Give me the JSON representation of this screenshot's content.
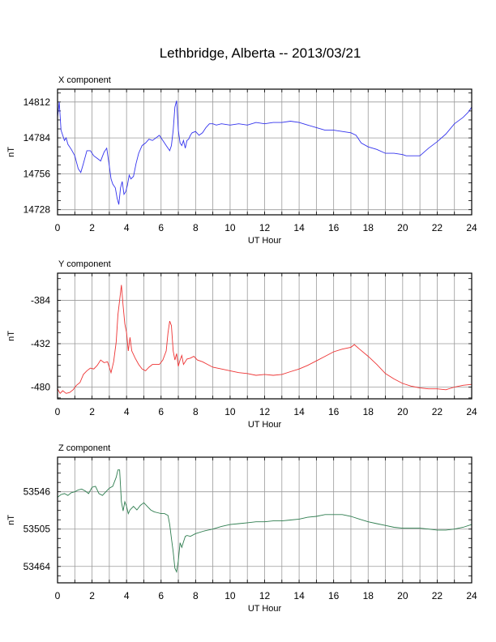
{
  "page": {
    "title": "Lethbridge, Alberta -- 2013/03/21"
  },
  "chart_data": [
    {
      "type": "line",
      "panel_label": "X component",
      "xlabel": "UT Hour",
      "ylabel": "nT",
      "xlim": [
        0,
        24
      ],
      "ylim": [
        14724,
        14822
      ],
      "x_ticks": [
        0,
        2,
        4,
        6,
        8,
        10,
        12,
        14,
        16,
        18,
        20,
        22,
        24
      ],
      "x_tick_labels": [
        "0",
        "2",
        "4",
        "6",
        "8",
        "10",
        "12",
        "14",
        "16",
        "18",
        "20",
        "22",
        "24"
      ],
      "y_ticks": [
        14728,
        14756,
        14784,
        14812
      ],
      "y_tick_labels": [
        "14728",
        "14756",
        "14784",
        "14812"
      ],
      "grid": true,
      "color": "#3333ee",
      "series": [
        {
          "x": [
            0,
            0.1,
            0.2,
            0.3,
            0.4,
            0.5,
            0.6,
            0.8,
            1.0,
            1.2,
            1.35,
            1.5,
            1.7,
            1.9,
            2.1,
            2.3,
            2.5,
            2.7,
            2.85,
            3.0,
            3.1,
            3.2,
            3.35,
            3.45,
            3.55,
            3.65,
            3.75,
            3.85,
            3.95,
            4.05,
            4.15,
            4.25,
            4.4,
            4.55,
            4.7,
            4.9,
            5.1,
            5.3,
            5.5,
            5.7,
            5.9,
            6.1,
            6.3,
            6.5,
            6.6,
            6.7,
            6.8,
            6.9,
            7.0,
            7.1,
            7.2,
            7.3,
            7.4,
            7.5,
            7.6,
            7.7,
            7.8,
            8.0,
            8.2,
            8.4,
            8.6,
            8.8,
            9.0,
            9.2,
            9.5,
            10,
            10.5,
            11,
            11.5,
            12,
            12.5,
            13,
            13.5,
            14,
            14.5,
            15,
            15.5,
            16,
            16.5,
            17,
            17.3,
            17.6,
            18,
            18.5,
            19,
            19.5,
            20,
            20.2,
            20.5,
            21,
            21.5,
            22,
            22.5,
            23,
            23.5,
            23.8,
            24
          ],
          "y": [
            14800,
            14812,
            14790,
            14786,
            14782,
            14784,
            14779,
            14775,
            14770,
            14760,
            14757,
            14764,
            14774,
            14774,
            14770,
            14768,
            14766,
            14773,
            14776,
            14762,
            14752,
            14748,
            14745,
            14737,
            14732,
            14745,
            14750,
            14740,
            14742,
            14747,
            14755,
            14752,
            14754,
            14764,
            14772,
            14778,
            14780,
            14783,
            14782,
            14784,
            14786,
            14782,
            14778,
            14774,
            14778,
            14790,
            14808,
            14813,
            14790,
            14780,
            14778,
            14782,
            14776,
            14782,
            14783,
            14786,
            14788,
            14789,
            14786,
            14788,
            14792,
            14795,
            14795,
            14794,
            14795,
            14794,
            14795,
            14794,
            14796,
            14795,
            14796,
            14796,
            14797,
            14796,
            14794,
            14792,
            14790,
            14790,
            14789,
            14788,
            14786,
            14780,
            14777,
            14775,
            14772,
            14772,
            14771,
            14770,
            14770,
            14770,
            14776,
            14781,
            14787,
            14795,
            14800,
            14804,
            14808
          ]
        }
      ]
    },
    {
      "type": "line",
      "panel_label": "Y component",
      "xlabel": "UT Hour",
      "ylabel": "nT",
      "xlim": [
        0,
        24
      ],
      "ylim": [
        -493,
        -354
      ],
      "x_ticks": [
        0,
        2,
        4,
        6,
        8,
        10,
        12,
        14,
        16,
        18,
        20,
        22,
        24
      ],
      "x_tick_labels": [
        "0",
        "2",
        "4",
        "6",
        "8",
        "10",
        "12",
        "14",
        "16",
        "18",
        "20",
        "22",
        "24"
      ],
      "y_ticks": [
        -480,
        -432,
        -384
      ],
      "y_tick_labels": [
        "-480",
        "-432",
        "-384"
      ],
      "grid": true,
      "color": "#ee3333",
      "series": [
        {
          "x": [
            0,
            0.15,
            0.3,
            0.5,
            0.7,
            0.9,
            1.1,
            1.3,
            1.5,
            1.7,
            1.9,
            2.1,
            2.3,
            2.5,
            2.7,
            2.9,
            3.1,
            3.25,
            3.4,
            3.5,
            3.6,
            3.7,
            3.8,
            3.9,
            4.0,
            4.1,
            4.2,
            4.3,
            4.5,
            4.7,
            4.9,
            5.1,
            5.3,
            5.5,
            5.7,
            5.9,
            6.1,
            6.3,
            6.4,
            6.5,
            6.6,
            6.7,
            6.8,
            6.9,
            7.0,
            7.1,
            7.2,
            7.3,
            7.5,
            7.7,
            7.9,
            8.1,
            8.4,
            8.7,
            9.0,
            9.5,
            10,
            10.5,
            11,
            11.5,
            12,
            12.5,
            13,
            13.5,
            14,
            14.5,
            15,
            15.5,
            16,
            16.5,
            17,
            17.2,
            17.5,
            18,
            18.5,
            19,
            19.5,
            20,
            20.5,
            21,
            21.5,
            22,
            22.5,
            23,
            23.5,
            24
          ],
          "y": [
            -482,
            -487,
            -484,
            -487,
            -486,
            -483,
            -478,
            -475,
            -466,
            -462,
            -459,
            -460,
            -456,
            -450,
            -453,
            -452,
            -464,
            -452,
            -430,
            -400,
            -384,
            -367,
            -390,
            -410,
            -420,
            -440,
            -425,
            -440,
            -448,
            -455,
            -460,
            -462,
            -458,
            -455,
            -455,
            -455,
            -450,
            -440,
            -420,
            -407,
            -412,
            -440,
            -450,
            -443,
            -457,
            -450,
            -445,
            -455,
            -449,
            -448,
            -446,
            -450,
            -452,
            -455,
            -458,
            -460,
            -462,
            -464,
            -465,
            -467,
            -466,
            -467,
            -466,
            -463,
            -460,
            -456,
            -451,
            -446,
            -441,
            -438,
            -436,
            -433,
            -438,
            -446,
            -455,
            -465,
            -471,
            -476,
            -479,
            -481,
            -482,
            -482,
            -483,
            -480,
            -478,
            -477
          ]
        }
      ]
    },
    {
      "type": "line",
      "panel_label": "Z component",
      "xlabel": "UT Hour",
      "ylabel": "nT",
      "xlim": [
        0,
        24
      ],
      "ylim": [
        53446,
        53584
      ],
      "x_ticks": [
        0,
        2,
        4,
        6,
        8,
        10,
        12,
        14,
        16,
        18,
        20,
        22,
        24
      ],
      "x_tick_labels": [
        "0",
        "2",
        "4",
        "6",
        "8",
        "10",
        "12",
        "14",
        "16",
        "18",
        "20",
        "22",
        "24"
      ],
      "y_ticks": [
        53464,
        53505,
        53546
      ],
      "y_tick_labels": [
        "53464",
        "53505",
        "53546"
      ],
      "grid": true,
      "color": "#2e7d4f",
      "series": [
        {
          "x": [
            0,
            0.2,
            0.4,
            0.6,
            0.8,
            1.0,
            1.2,
            1.4,
            1.6,
            1.8,
            2.0,
            2.2,
            2.4,
            2.6,
            2.8,
            3.0,
            3.2,
            3.4,
            3.5,
            3.6,
            3.7,
            3.8,
            3.9,
            4.0,
            4.1,
            4.2,
            4.4,
            4.6,
            4.8,
            5.0,
            5.2,
            5.4,
            5.6,
            5.8,
            6.0,
            6.2,
            6.4,
            6.5,
            6.6,
            6.7,
            6.8,
            6.9,
            7.0,
            7.1,
            7.2,
            7.3,
            7.4,
            7.5,
            7.7,
            8.0,
            8.5,
            9,
            9.5,
            10,
            10.5,
            11,
            11.5,
            12,
            12.5,
            13,
            13.5,
            14,
            14.5,
            15,
            15.5,
            16,
            16.5,
            17,
            17.5,
            18,
            18.5,
            19,
            19.5,
            20,
            20.5,
            21,
            21.5,
            22,
            22.5,
            23,
            23.5,
            24
          ],
          "y": [
            53540,
            53543,
            53544,
            53542,
            53545,
            53546,
            53548,
            53549,
            53547,
            53544,
            53551,
            53552,
            53544,
            53542,
            53546,
            53550,
            53552,
            53562,
            53570,
            53570,
            53535,
            53525,
            53535,
            53530,
            53522,
            53526,
            53530,
            53526,
            53531,
            53534,
            53530,
            53526,
            53524,
            53523,
            53522,
            53522,
            53520,
            53510,
            53495,
            53480,
            53462,
            53458,
            53470,
            53490,
            53485,
            53491,
            53497,
            53498,
            53497,
            53500,
            53503,
            53505,
            53508,
            53510,
            53511,
            53512,
            53513,
            53513,
            53514,
            53514,
            53515,
            53516,
            53518,
            53519,
            53521,
            53521,
            53521,
            53519,
            53516,
            53513,
            53511,
            53509,
            53507,
            53506,
            53506,
            53506,
            53505,
            53504,
            53504,
            53505,
            53507,
            53510
          ]
        }
      ]
    }
  ]
}
